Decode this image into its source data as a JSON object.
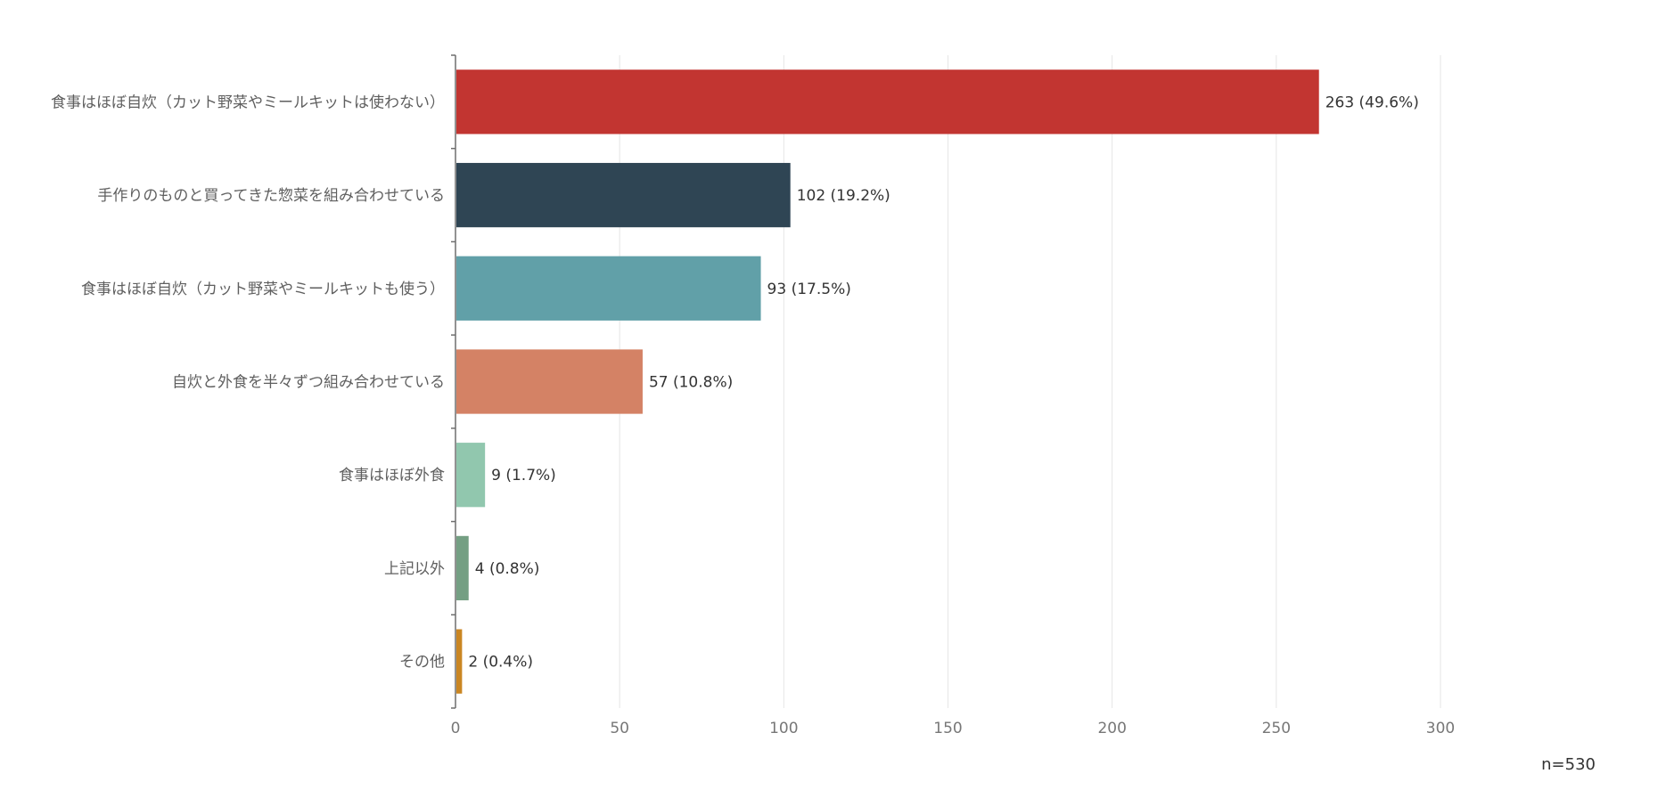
{
  "chart_data": {
    "type": "bar",
    "orientation": "horizontal",
    "title": "",
    "xlabel": "",
    "ylabel": "",
    "xlim": [
      0,
      300
    ],
    "x_ticks": [
      0,
      50,
      100,
      150,
      200,
      250,
      300
    ],
    "grid": true,
    "categories": [
      "食事はほぼ自炊（カット野菜やミールキットは使わない）",
      "手作りのものと買ってきた惣菜を組み合わせている",
      "食事はほぼ自炊（カット野菜やミールキットも使う）",
      "自炊と外食を半々ずつ組み合わせている",
      "食事はほぼ外食",
      "上記以外",
      "その他"
    ],
    "values": [
      263,
      102,
      93,
      57,
      9,
      4,
      2
    ],
    "data_labels": [
      "263 (49.6%)",
      "102 (19.2%)",
      "93 (17.5%)",
      "57 (10.8%)",
      "9 (1.7%)",
      "4 (0.8%)",
      "2 (0.4%)"
    ],
    "colors": [
      "#c23531",
      "#2f4554",
      "#61a0a8",
      "#d48265",
      "#91c7ae",
      "#749f83",
      "#ca8622"
    ],
    "note": "n=530"
  }
}
